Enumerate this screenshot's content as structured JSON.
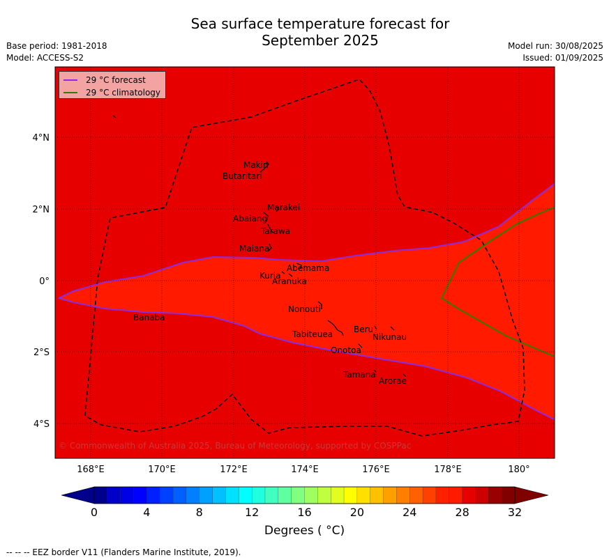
{
  "title": [
    "Sea surface temperature forecast for",
    "September 2025"
  ],
  "meta_left": [
    "Base period: 1981-2018",
    "Model: ACCESS-S2"
  ],
  "meta_right": [
    "Model run: 30/08/2025",
    "Issued: 01/09/2025"
  ],
  "copyright": "© Commonwealth of Australia 2025, Bureau of Meteorology, supported by COSPPac",
  "legend": [
    {
      "label": "29 °C  forecast",
      "color": "#8a2be2"
    },
    {
      "label": "29 °C  climatology",
      "color": "#2e7d00"
    }
  ],
  "axes": {
    "x_ticks": [
      "168°E",
      "170°E",
      "172°E",
      "174°E",
      "176°E",
      "178°E",
      "180°"
    ],
    "y_ticks": [
      "4°N",
      "2°N",
      "0°",
      "2°S",
      "4°S"
    ]
  },
  "colors": {
    "warm_above_29": "#e60000",
    "band_28_29": "#ff1a00",
    "eez_border": "#000000"
  },
  "islands": [
    {
      "name": "Makin"
    },
    {
      "name": "Butaritari"
    },
    {
      "name": "Marakei"
    },
    {
      "name": "Abaiang"
    },
    {
      "name": "Tarawa"
    },
    {
      "name": "Maiana"
    },
    {
      "name": "Abemama"
    },
    {
      "name": "Kuria"
    },
    {
      "name": "Aranuka"
    },
    {
      "name": "Nonouti"
    },
    {
      "name": "Banaba"
    },
    {
      "name": "Beru"
    },
    {
      "name": "Nikunau"
    },
    {
      "name": "Tabiteuea"
    },
    {
      "name": "Onotoa"
    },
    {
      "name": "Tamana"
    },
    {
      "name": "Arorae"
    }
  ],
  "colorbar": {
    "ticks": [
      "0",
      "4",
      "8",
      "12",
      "16",
      "20",
      "24",
      "28",
      "32"
    ],
    "label": "Degrees ( °C)",
    "colors": [
      "#00008b",
      "#0000c8",
      "#0000e6",
      "#0000ff",
      "#0020ff",
      "#0040ff",
      "#0060ff",
      "#0080ff",
      "#00a0ff",
      "#00c0ff",
      "#00e0ff",
      "#00ffff",
      "#20ffe0",
      "#40ffc0",
      "#60ffa0",
      "#80ff80",
      "#a0ff60",
      "#c0ff40",
      "#e0ff20",
      "#ffff00",
      "#ffe000",
      "#ffc000",
      "#ffa000",
      "#ff8000",
      "#ff6000",
      "#ff4000",
      "#ff2000",
      "#ff1a00",
      "#e60000",
      "#cc0000",
      "#990000",
      "#800000"
    ]
  },
  "footer": "--  --  -- EEZ border V11 (Flanders Marine Institute, 2019)."
}
